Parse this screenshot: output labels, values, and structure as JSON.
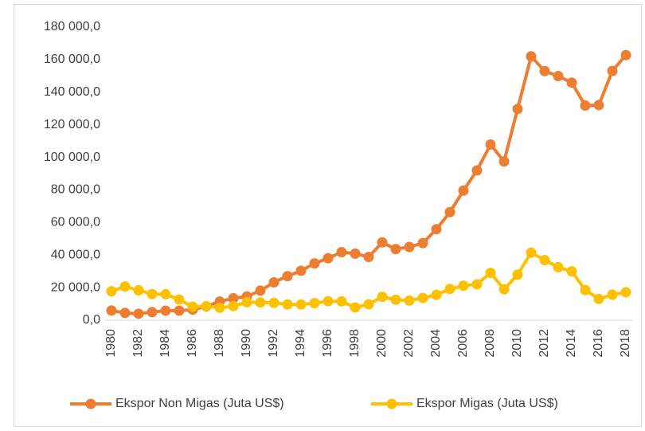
{
  "chart_data": {
    "type": "line",
    "categories": [
      "1980",
      null,
      "1982",
      null,
      "1984",
      null,
      "1986",
      null,
      "1988",
      null,
      "1990",
      null,
      "1992",
      null,
      "1994",
      null,
      "1996",
      null,
      "1998",
      null,
      "2000",
      null,
      "2002",
      null,
      "2004",
      null,
      "2006",
      null,
      "2008",
      null,
      "2010",
      null,
      "2012",
      null,
      "2014",
      null,
      "2016",
      null,
      "2018"
    ],
    "series": [
      {
        "name": "Ekspor Non Migas (Juta US$)",
        "color": "#ed7d31",
        "values": [
          6000,
          4500,
          4000,
          5000,
          5900,
          5900,
          6500,
          8500,
          11500,
          13500,
          14600,
          18200,
          23300,
          27100,
          30400,
          34900,
          38100,
          41800,
          40900,
          38900,
          47800,
          43700,
          45000,
          47400,
          55900,
          66400,
          79600,
          92000,
          107900,
          97500,
          129700,
          162000,
          153000,
          149900,
          145900,
          131800,
          132100,
          153100,
          162800
        ]
      },
      {
        "name": "Ekspor Migas (Juta US$)",
        "color": "#ffc000",
        "values": [
          17800,
          20700,
          18400,
          16100,
          16000,
          12700,
          8300,
          8600,
          7700,
          8700,
          11100,
          10900,
          10700,
          9700,
          9700,
          10500,
          11700,
          11600,
          7900,
          9800,
          14400,
          12600,
          12100,
          13700,
          15600,
          19200,
          21200,
          22100,
          29100,
          19000,
          28000,
          41500,
          36900,
          32600,
          30000,
          18600,
          13100,
          15700,
          17200
        ]
      }
    ],
    "ylim": [
      0,
      180000
    ],
    "yticks": [
      {
        "value": 0,
        "label": "0,0"
      },
      {
        "value": 20000,
        "label": "20 000,0"
      },
      {
        "value": 40000,
        "label": "40 000,0"
      },
      {
        "value": 60000,
        "label": "60 000,0"
      },
      {
        "value": 80000,
        "label": "80 000,0"
      },
      {
        "value": 100000,
        "label": "100 000,0"
      },
      {
        "value": 120000,
        "label": "120 000,0"
      },
      {
        "value": 140000,
        "label": "140 000,0"
      },
      {
        "value": 160000,
        "label": "160 000,0"
      },
      {
        "value": 180000,
        "label": "180 000,0"
      }
    ],
    "grid": false,
    "legend": "bottom"
  }
}
